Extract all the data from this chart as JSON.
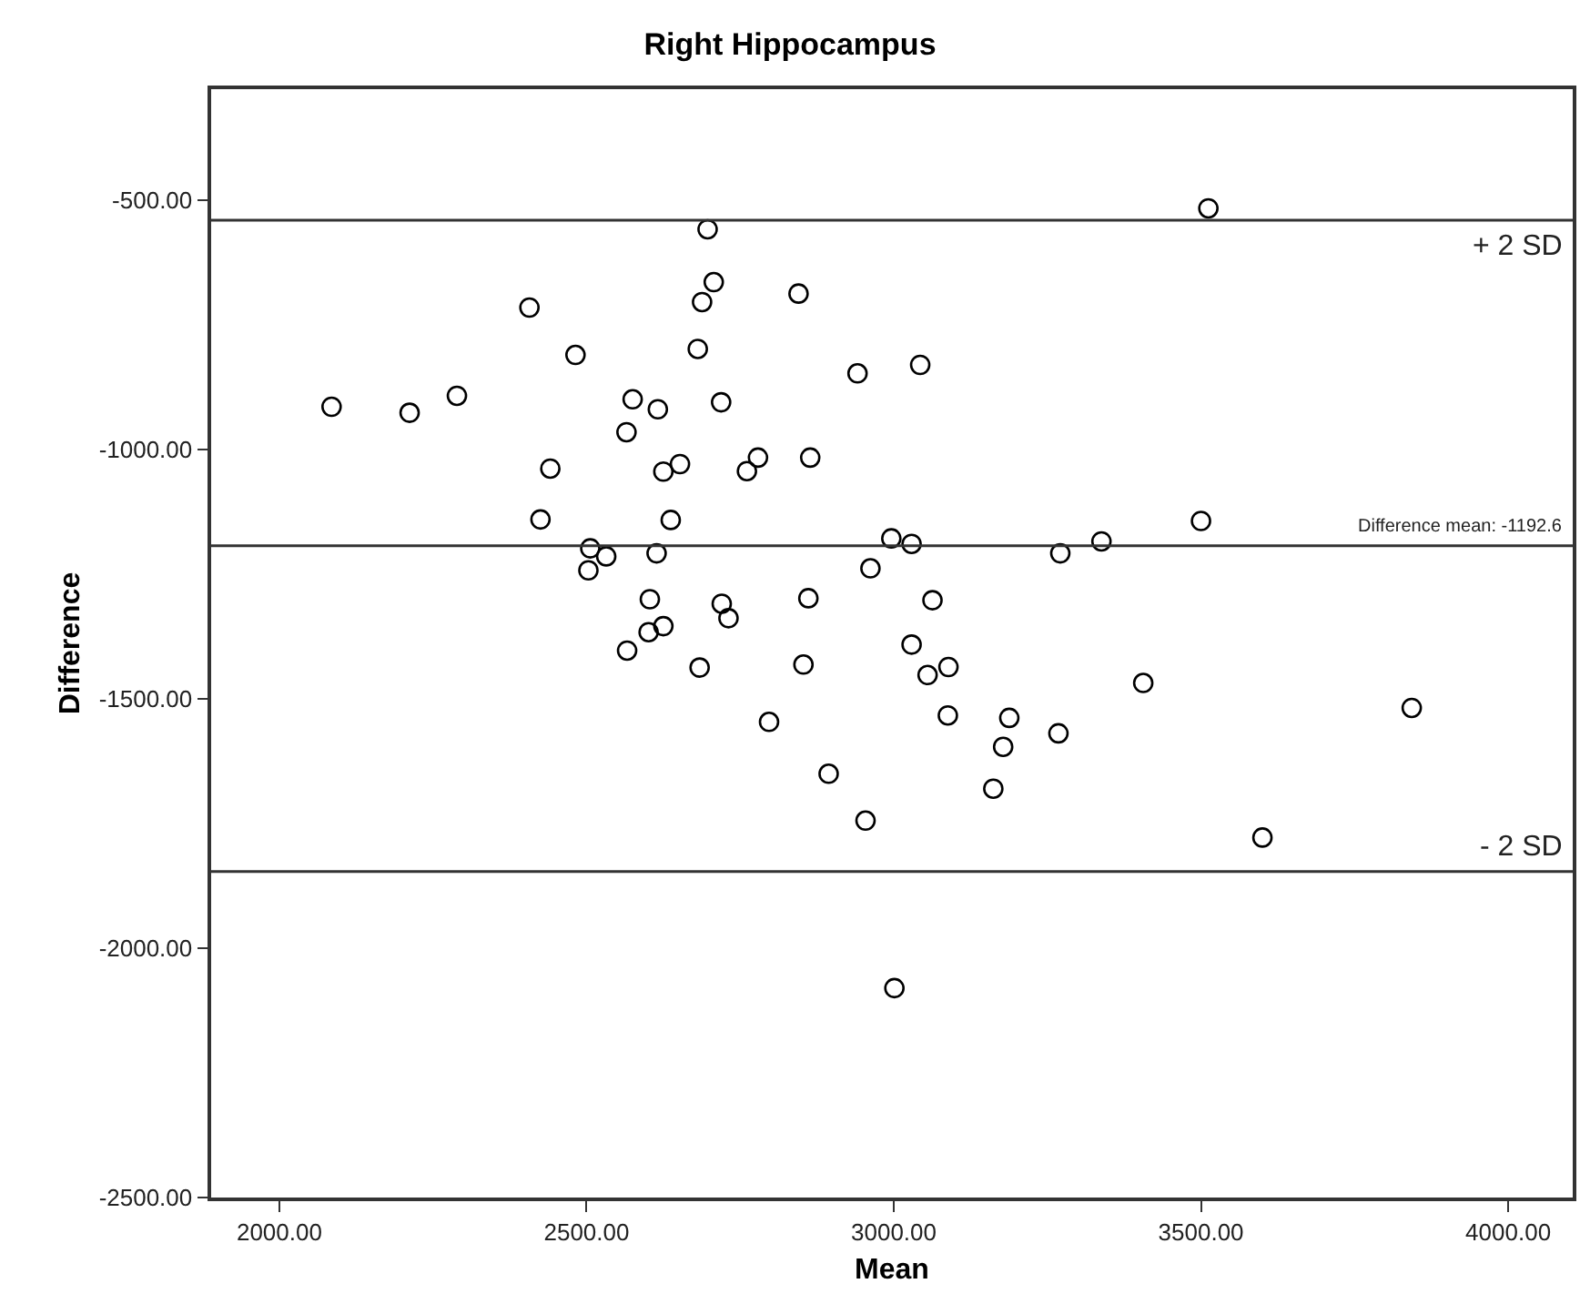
{
  "chart_data": {
    "type": "scatter",
    "title": "Right Hippocampus",
    "xlabel": "Mean",
    "ylabel": "Difference",
    "marker": "circle",
    "xlim": [
      1889,
      4105
    ],
    "ylim": [
      -2500,
      -277
    ],
    "xticks": [
      {
        "value": 2000,
        "label": "2000.00"
      },
      {
        "value": 2500,
        "label": "2500.00"
      },
      {
        "value": 3000,
        "label": "3000.00"
      },
      {
        "value": 3500,
        "label": "3500.00"
      },
      {
        "value": 4000,
        "label": "4000.00"
      }
    ],
    "yticks": [
      {
        "value": -500,
        "label": "-500.00"
      },
      {
        "value": -1000,
        "label": "-1000.00"
      },
      {
        "value": -1500,
        "label": "-1500.00"
      },
      {
        "value": -2000,
        "label": "-2000.00"
      },
      {
        "value": -2500,
        "label": "-2500.00"
      }
    ],
    "ref_lines": [
      {
        "axis": "y",
        "value": -540,
        "label": "+ 2 SD",
        "color": "#333333"
      },
      {
        "axis": "y",
        "value": -1192.6,
        "label": "Difference mean: -1192.6",
        "color": "#333333"
      },
      {
        "axis": "y",
        "value": -1846,
        "label": "- 2 SD",
        "color": "#333333"
      }
    ],
    "series": [
      {
        "color": "#000000",
        "x": [
          2085,
          2212,
          2289,
          2407,
          2482,
          2575,
          2616,
          2565,
          2441,
          2625,
          2652,
          2425,
          2637,
          2697,
          2707,
          2688,
          2681,
          2719,
          2761,
          2779,
          2864,
          2845,
          2941,
          2506,
          2532,
          2503,
          2614,
          2962,
          3512,
          3043,
          3500,
          2996,
          3029,
          3271,
          3338,
          2603,
          2720,
          2731,
          2861,
          2601,
          2625,
          2566,
          2684,
          2853,
          2797,
          2894,
          2954,
          3001,
          3063,
          3029,
          3055,
          3089,
          3088,
          3188,
          3178,
          3268,
          3162,
          3406,
          3843,
          3600
        ],
        "values": [
          -914,
          -926,
          -892,
          -715,
          -810,
          -899,
          -919,
          -965,
          -1038,
          -1044,
          -1029,
          -1140,
          -1141,
          -558,
          -664,
          -704,
          -798,
          -905,
          -1043,
          -1016,
          -1016,
          -687,
          -847,
          -1198,
          -1214,
          -1242,
          -1208,
          -1238,
          -516,
          -830,
          -1143,
          -1178,
          -1189,
          -1208,
          -1184,
          -1300,
          -1309,
          -1338,
          -1298,
          -1366,
          -1354,
          -1403,
          -1437,
          -1431,
          -1546,
          -1650,
          -1744,
          -2080,
          -1302,
          -1391,
          -1452,
          -1436,
          -1533,
          -1538,
          -1596,
          -1569,
          -1680,
          -1468,
          -1518,
          -1778
        ]
      }
    ]
  }
}
